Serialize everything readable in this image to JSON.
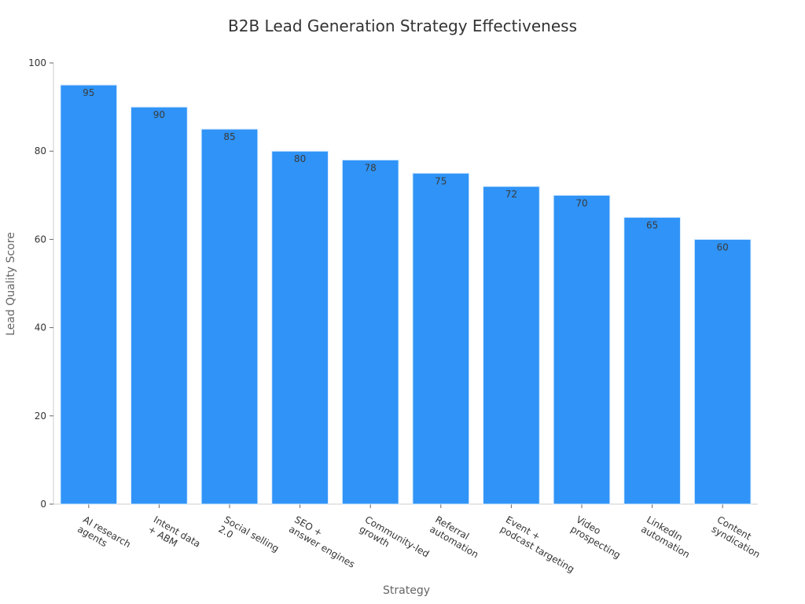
{
  "chart_data": {
    "type": "bar",
    "title": "B2B Lead Generation Strategy Effectiveness",
    "xlabel": "Strategy",
    "ylabel": "Lead Quality Score",
    "categories": [
      [
        "AI research",
        "agents"
      ],
      [
        "Intent data",
        "+ ABM"
      ],
      [
        "Social selling",
        "2.0"
      ],
      [
        "SEO +",
        "answer engines"
      ],
      [
        "Community-led",
        "growth"
      ],
      [
        "Referral",
        "automation"
      ],
      [
        "Event +",
        "podcast targeting"
      ],
      [
        "Video",
        "prospecting"
      ],
      [
        "LinkedIn",
        "automation"
      ],
      [
        "Content",
        "syndication"
      ]
    ],
    "values": [
      95,
      90,
      85,
      80,
      78,
      75,
      72,
      70,
      65,
      60
    ],
    "ylim": [
      0,
      100
    ],
    "yticks": [
      0,
      20,
      40,
      60,
      80,
      100
    ],
    "grid": false,
    "legend": "none",
    "colors": {
      "bar": "#2f93f7",
      "bar_edge": "#d9ecff"
    }
  }
}
